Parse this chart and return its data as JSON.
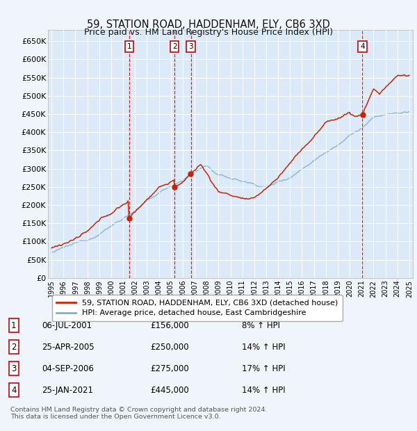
{
  "title": "59, STATION ROAD, HADDENHAM, ELY, CB6 3XD",
  "subtitle": "Price paid vs. HM Land Registry's House Price Index (HPI)",
  "bg_color": "#f0f4fb",
  "plot_bg_color": "#dce9f8",
  "grid_color": "#ffffff",
  "sales": [
    {
      "label": "1",
      "date_num": 2001.53,
      "price": 156000
    },
    {
      "label": "2",
      "date_num": 2005.32,
      "price": 250000
    },
    {
      "label": "3",
      "date_num": 2006.68,
      "price": 275000
    },
    {
      "label": "4",
      "date_num": 2021.07,
      "price": 445000
    }
  ],
  "sale_dates": [
    "06-JUL-2001",
    "25-APR-2005",
    "04-SEP-2006",
    "25-JAN-2021"
  ],
  "sale_prices": [
    "£156,000",
    "£250,000",
    "£275,000",
    "£445,000"
  ],
  "sale_notes": [
    "8% ↑ HPI",
    "14% ↑ HPI",
    "17% ↑ HPI",
    "14% ↑ HPI"
  ],
  "ylim": [
    0,
    680000
  ],
  "yticks": [
    0,
    50000,
    100000,
    150000,
    200000,
    250000,
    300000,
    350000,
    400000,
    450000,
    500000,
    550000,
    600000,
    650000
  ],
  "xlim_start": 1994.7,
  "xlim_end": 2025.3,
  "xticks": [
    1995,
    1996,
    1997,
    1998,
    1999,
    2000,
    2001,
    2002,
    2003,
    2004,
    2005,
    2006,
    2007,
    2008,
    2009,
    2010,
    2011,
    2012,
    2013,
    2014,
    2015,
    2016,
    2017,
    2018,
    2019,
    2020,
    2021,
    2022,
    2023,
    2024,
    2025
  ],
  "line_red": "#cc2200",
  "line_blue": "#7ab0d8",
  "legend_label_red": "59, STATION ROAD, HADDENHAM, ELY, CB6 3XD (detached house)",
  "legend_label_blue": "HPI: Average price, detached house, East Cambridgeshire",
  "footer": "Contains HM Land Registry data © Crown copyright and database right 2024.\nThis data is licensed under the Open Government Licence v3.0."
}
